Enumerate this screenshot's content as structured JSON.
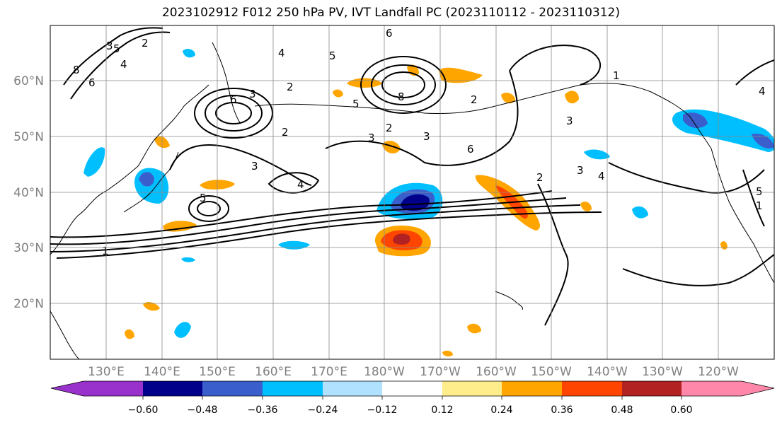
{
  "title": "2023102912 F012 250 hPa PV, IVT Landfall PC (2023110112 - 2023110312)",
  "lat_labels": [
    "60°N",
    "50°N",
    "40°N",
    "30°N",
    "20°N"
  ],
  "lon_labels": [
    "130°E",
    "140°E",
    "150°E",
    "160°E",
    "170°E",
    "180°W",
    "170°W",
    "160°W",
    "150°W",
    "140°W",
    "130°W",
    "120°W"
  ],
  "contour_labels": [
    "8",
    "6",
    "5",
    "4",
    "3",
    "2",
    "1",
    "6",
    "5",
    "3",
    "2",
    "2",
    "2",
    "5",
    "4",
    "3",
    "8",
    "6",
    "5",
    "4",
    "3",
    "2",
    "3",
    "6",
    "4",
    "3",
    "2",
    "1",
    "3",
    "4",
    "5",
    "1"
  ],
  "colorbar": {
    "ticks": [
      "−0.60",
      "−0.48",
      "−0.36",
      "−0.24",
      "−0.12",
      "0.12",
      "0.24",
      "0.36",
      "0.48",
      "0.60"
    ],
    "colors": [
      "#9932cc",
      "#00008b",
      "#3a5fcd",
      "#00bfff",
      "#b0e2ff",
      "#ffffff",
      "#ffec8b",
      "#ffa500",
      "#ff4500",
      "#b22222",
      "#ff88aa"
    ]
  }
}
